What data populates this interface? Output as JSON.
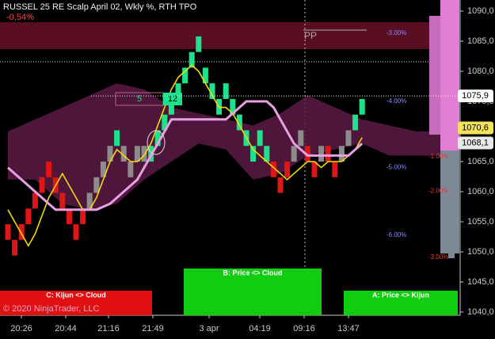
{
  "chart_data": {
    "type": "renko",
    "title": "RUSSEL 25 RE Scalp April 02, Wkly %, RTH TPO",
    "change": "-0,54%",
    "ylim": [
      1040,
      1090
    ],
    "yticks": [
      {
        "value": 1040,
        "label": "1040,0"
      },
      {
        "value": 1045,
        "label": "1045,0"
      },
      {
        "value": 1050,
        "label": "1050,0"
      },
      {
        "value": 1055,
        "label": "1055,0"
      },
      {
        "value": 1060,
        "label": "1060,0"
      },
      {
        "value": 1065,
        "label": "1065,0"
      },
      {
        "value": 1070,
        "label": "1070,0"
      },
      {
        "value": 1075,
        "label": "1075,0"
      },
      {
        "value": 1080,
        "label": "1080,0"
      },
      {
        "value": 1085,
        "label": "1085,0"
      },
      {
        "value": 1090,
        "label": "1090,0"
      }
    ],
    "time_labels": [
      "20:26",
      "20:44",
      "21:16",
      "21:49",
      "3 apr",
      "04:19",
      "09:16",
      "13:47"
    ],
    "bricks": {
      "open": [
        1054.6,
        1052,
        1052,
        1054.6,
        1057.2,
        1059.8,
        1062.4,
        1062.4,
        1059.8,
        1057.2,
        1054.6,
        1054.6,
        1057.2,
        1059.8,
        1062.4,
        1065,
        1067.6,
        1067.6,
        1065,
        1065,
        1067.6,
        1065,
        1067.6,
        1070.2,
        1072.8,
        1075.4,
        1078,
        1080.6,
        1083.2,
        1080.6,
        1078,
        1075.4,
        1075.4,
        1075.4,
        1072.8,
        1070.2,
        1067.6,
        1067.6,
        1067.6,
        1065,
        1062.4,
        1062.4,
        1065,
        1067.6,
        1067.6,
        1065,
        1065,
        1067.6,
        1065,
        1065,
        1067.6,
        1070.2,
        1072.8
      ],
      "close": [
        1052,
        1049.4,
        1054.6,
        1057.2,
        1059.8,
        1062.4,
        1065,
        1059.8,
        1057.2,
        1054.6,
        1052,
        1057.2,
        1059.8,
        1062.4,
        1065,
        1067.6,
        1070.2,
        1065,
        1062.4,
        1067.6,
        1065,
        1067.6,
        1070.2,
        1072.8,
        1075.4,
        1078,
        1080.6,
        1083.2,
        1085.8,
        1078,
        1075.4,
        1072.8,
        1078,
        1072.8,
        1070.2,
        1067.6,
        1065,
        1070.2,
        1065,
        1062.4,
        1059.8,
        1065,
        1067.6,
        1070.2,
        1065,
        1062.4,
        1067.6,
        1065,
        1062.4,
        1067.6,
        1070.2,
        1072.8,
        1075.4
      ],
      "color": [
        "#e01515",
        "#e01515",
        "#e01515",
        "#e01515",
        "#e01515",
        "#e01515",
        "#e01515",
        "#e01515",
        "#e01515",
        "#e01515",
        "#e01515",
        "#e01515",
        "#8c8c8c",
        "#8c8c8c",
        "#8c8c8c",
        "#8c8c8c",
        "#1de28c",
        "#8c8c8c",
        "#8c8c8c",
        "#8c8c8c",
        "#8c8c8c",
        "#1de28c",
        "#1de28c",
        "#1de28c",
        "#1de28c",
        "#1de28c",
        "#1de28c",
        "#1de28c",
        "#1de28c",
        "#1de28c",
        "#1de28c",
        "#1de28c",
        "#1de28c",
        "#1de28c",
        "#1de28c",
        "#1de28c",
        "#1de28c",
        "#1de28c",
        "#1de28c",
        "#e01515",
        "#e01515",
        "#e01515",
        "#8c8c8c",
        "#8c8c8c",
        "#e01515",
        "#e01515",
        "#8c8c8c",
        "#e01515",
        "#e01515",
        "#8c8c8c",
        "#8c8c8c",
        "#1de28c",
        "#1de28c"
      ]
    },
    "lines": [
      {
        "color": "#f5d90a",
        "values": [
          1057,
          1055,
          1053,
          1051,
          1053,
          1056,
          1059,
          1061,
          1063,
          1061,
          1059,
          1057,
          1057,
          1059,
          1062,
          1065,
          1067,
          1066,
          1065,
          1065,
          1066,
          1068,
          1071,
          1074,
          1077,
          1079,
          1080,
          1081,
          1080,
          1078,
          1076,
          1074,
          1074,
          1073,
          1071,
          1069,
          1067,
          1066,
          1065,
          1064,
          1063,
          1062,
          1063,
          1064,
          1065,
          1065,
          1064,
          1065,
          1065,
          1065,
          1066,
          1067,
          1069
        ]
      },
      {
        "color": "#e8a0e0",
        "values": [
          1064,
          1063,
          1062,
          1061,
          1060,
          1059,
          1058,
          1057,
          1057,
          1057,
          1057,
          1057,
          1057,
          1057,
          1057.5,
          1058,
          1059,
          1060,
          1061,
          1062,
          1064,
          1066,
          1068,
          1070,
          1072,
          1072,
          1072,
          1072,
          1072,
          1072,
          1072,
          1072,
          1072,
          1073,
          1074,
          1075,
          1075,
          1075,
          1075,
          1074,
          1072,
          1070,
          1068,
          1067,
          1066,
          1066,
          1066,
          1066,
          1066,
          1066,
          1066,
          1067,
          1068
        ]
      }
    ],
    "cloud": {
      "color": "#5c1a45",
      "index": [
        0,
        4,
        8,
        12,
        16,
        20,
        24,
        28,
        32,
        36,
        40,
        44,
        48,
        52,
        56,
        60,
        64
      ],
      "upper": [
        1070,
        1072,
        1074,
        1076,
        1078,
        1077,
        1074,
        1073,
        1072,
        1071,
        1073,
        1076,
        1074,
        1072,
        1071,
        1070,
        1070
      ],
      "lower": [
        1062,
        1062,
        1058,
        1057,
        1058,
        1062,
        1065,
        1068,
        1067,
        1062,
        1063,
        1066,
        1067,
        1068,
        1066,
        1066,
        1066
      ]
    },
    "level_labels": [
      {
        "value": 1086.3,
        "label": "-3.00%"
      },
      {
        "value": 1075,
        "label": "-4.00%"
      },
      {
        "value": 1064,
        "label": "-5.00%"
      },
      {
        "value": 1052.8,
        "label": "-6.00%"
      }
    ],
    "red_level_labels": [
      {
        "value": 1065.8,
        "label": "-1.00%"
      },
      {
        "value": 1060.1,
        "label": "-2.00%"
      },
      {
        "value": 1049.1,
        "label": "-3.00%"
      }
    ],
    "price_markers": [
      {
        "value": 1075.9,
        "label": "1075,9"
      },
      {
        "value": 1070.6,
        "label": "1070,6"
      },
      {
        "value": 1068.1,
        "label": "1068,1"
      }
    ],
    "pivot_label": "PP",
    "counter_left": "5",
    "counter_right": "12",
    "signals": [
      "C: Kijun <> Cloud",
      "B: Price <> Cloud",
      "A: Price <> Kijun"
    ],
    "copyright": "© 2020 NinjaTrader, LLC"
  }
}
